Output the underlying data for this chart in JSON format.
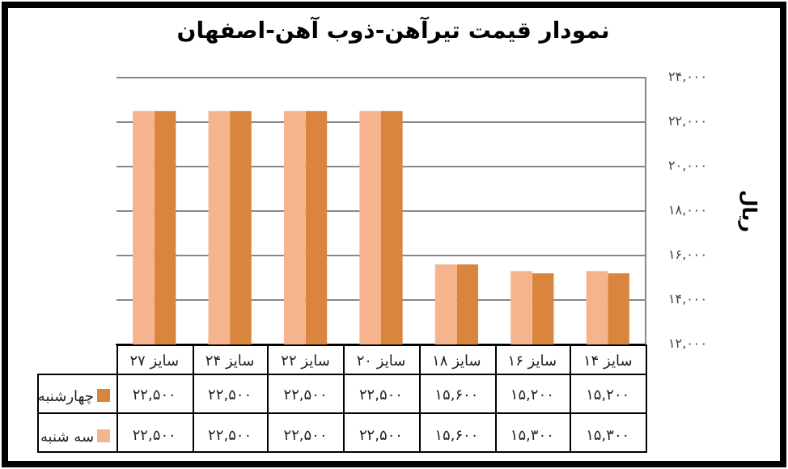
{
  "chart_data": {
    "type": "bar",
    "title": "نمودار قیمت تیرآهن-ذوب آهن-اصفهان",
    "ylabel": "ریال",
    "categories": [
      "سایز ۲۷",
      "سایز ۲۴",
      "سایز ۲۲",
      "سایز ۲۰",
      "سایز ۱۸",
      "سایز ۱۶",
      "سایز ۱۴"
    ],
    "series": [
      {
        "name": "سه شنبه",
        "color": "#f5b48d",
        "values": [
          22500,
          22500,
          22500,
          22500,
          15600,
          15300,
          15300
        ],
        "value_labels": [
          "۲۲,۵۰۰",
          "۲۲,۵۰۰",
          "۲۲,۵۰۰",
          "۲۲,۵۰۰",
          "۱۵,۶۰۰",
          "۱۵,۳۰۰",
          "۱۵,۳۰۰"
        ]
      },
      {
        "name": "چهارشنبه",
        "color": "#d9853e",
        "values": [
          22500,
          22500,
          22500,
          22500,
          15600,
          15200,
          15200
        ],
        "value_labels": [
          "۲۲,۵۰۰",
          "۲۲,۵۰۰",
          "۲۲,۵۰۰",
          "۲۲,۵۰۰",
          "۱۵,۶۰۰",
          "۱۵,۲۰۰",
          "۱۵,۲۰۰"
        ]
      }
    ],
    "ylim": [
      12000,
      24000
    ],
    "yticks": [
      {
        "value": 12000,
        "label": "۱۲,۰۰۰"
      },
      {
        "value": 14000,
        "label": "۱۴,۰۰۰"
      },
      {
        "value": 16000,
        "label": "۱۶,۰۰۰"
      },
      {
        "value": 18000,
        "label": "۱۸,۰۰۰"
      },
      {
        "value": 20000,
        "label": "۲۰,۰۰۰"
      },
      {
        "value": 22000,
        "label": "۲۲,۰۰۰"
      },
      {
        "value": 24000,
        "label": "۲۴,۰۰۰"
      }
    ],
    "grid": "y",
    "legend": "bottom"
  }
}
